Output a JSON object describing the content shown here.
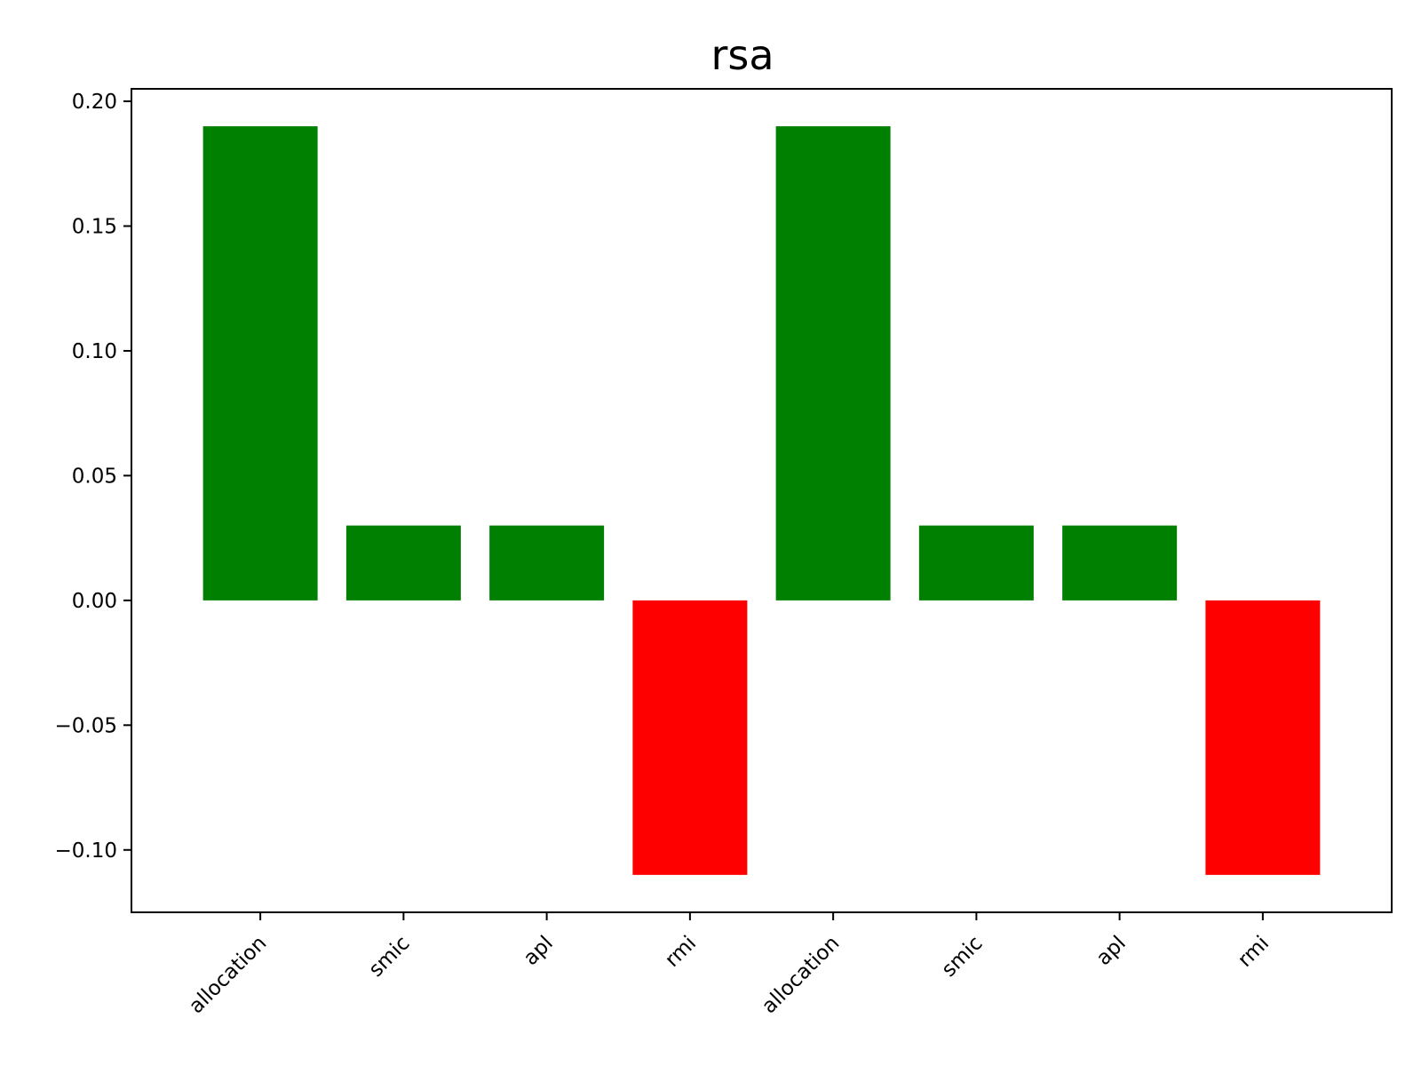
{
  "chart_data": {
    "type": "bar",
    "title": "rsa",
    "xlabel": "",
    "ylabel": "",
    "categories": [
      "allocation",
      "smic",
      "apl",
      "rmi",
      "allocation",
      "smic",
      "apl",
      "rmi"
    ],
    "values": [
      0.19,
      0.03,
      0.03,
      -0.11,
      0.19,
      0.03,
      0.03,
      -0.11
    ],
    "bar_colors": [
      "#008000",
      "#008000",
      "#008000",
      "#ff0000",
      "#008000",
      "#008000",
      "#008000",
      "#ff0000"
    ],
    "ylim": [
      -0.125,
      0.205
    ],
    "yticks": [
      -0.1,
      -0.05,
      0.0,
      0.05,
      0.1,
      0.15,
      0.2
    ],
    "ytick_labels": [
      "−0.10",
      "−0.05",
      "0.00",
      "0.05",
      "0.10",
      "0.15",
      "0.20"
    ],
    "grid": false,
    "legend": "none",
    "x_tick_rotation_deg": 45
  }
}
